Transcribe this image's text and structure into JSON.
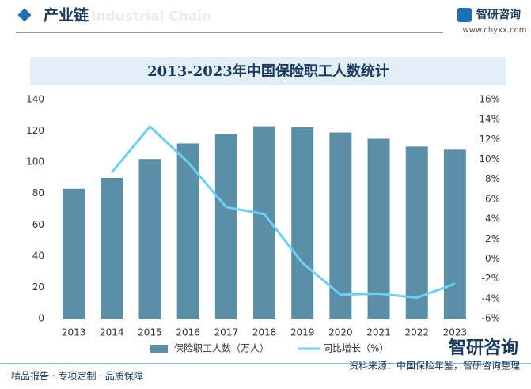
{
  "header": {
    "title": "产业链",
    "watermark": "Industrial Chain",
    "logo": "智研咨询",
    "url": "www.chyxx.com"
  },
  "chart_data": {
    "type": "bar",
    "title": "2013-2023年中国保险职工人数统计",
    "categories": [
      "2013",
      "2014",
      "2015",
      "2016",
      "2017",
      "2018",
      "2019",
      "2020",
      "2021",
      "2022",
      "2023"
    ],
    "series": [
      {
        "name": "保险职工人数（万人）",
        "type": "bar",
        "color": "#5b8fa8",
        "values": [
          83,
          90,
          102,
          112,
          118,
          123,
          122.5,
          119,
          115,
          110,
          108
        ]
      },
      {
        "name": "同比增长（%）",
        "type": "line",
        "axis": "y2",
        "color": "#6dcff6",
        "values": [
          null,
          8.7,
          13.3,
          9.7,
          5.2,
          4.5,
          -0.4,
          -3.6,
          -3.5,
          -3.9,
          -2.5
        ]
      }
    ],
    "ylim": [
      0,
      140
    ],
    "yticks": [
      0,
      20,
      40,
      60,
      80,
      100,
      120,
      140
    ],
    "y2lim": [
      -6,
      16
    ],
    "y2ticks": [
      {
        "value": -6,
        "label": "-6%"
      },
      {
        "value": -4,
        "label": "-4%"
      },
      {
        "value": -2,
        "label": "-2%"
      },
      {
        "value": 0,
        "label": "0%"
      },
      {
        "value": 2,
        "label": "2%"
      },
      {
        "value": 4,
        "label": "4%"
      },
      {
        "value": 6,
        "label": "6%"
      },
      {
        "value": 8,
        "label": "8%"
      },
      {
        "value": 10,
        "label": "10%"
      },
      {
        "value": 12,
        "label": "12%"
      },
      {
        "value": 14,
        "label": "14%"
      },
      {
        "value": 16,
        "label": "16%"
      }
    ],
    "legend": "bottom"
  },
  "footer": {
    "tagline": "精品报告 · 专项定制 · 品质保障",
    "source": "资料来源：中国保险年鉴，智研咨询整理",
    "logo": "智研咨询"
  }
}
